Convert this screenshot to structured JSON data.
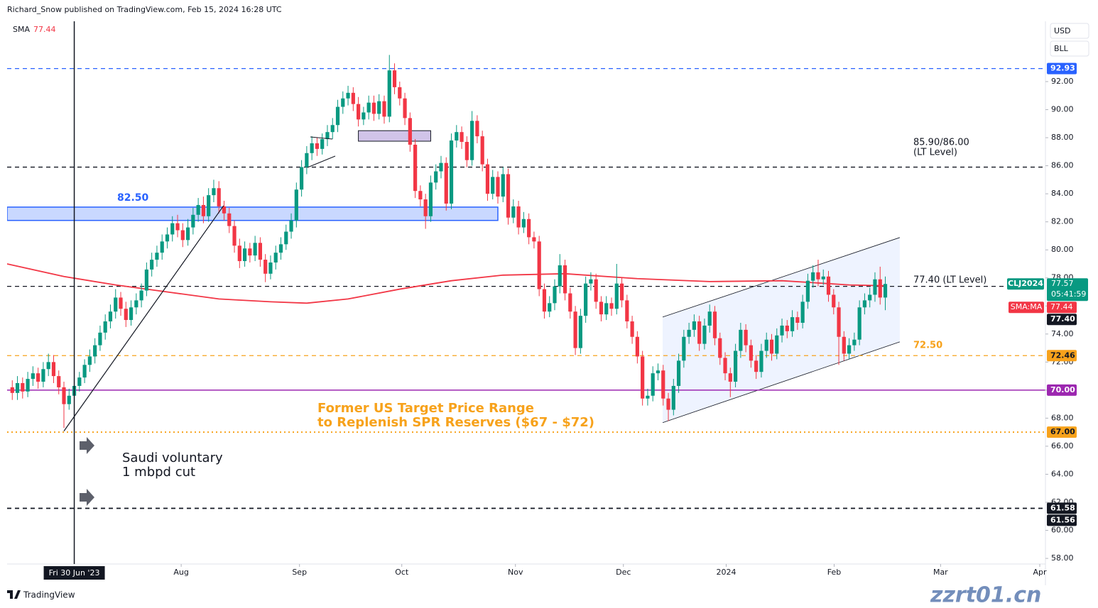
{
  "chart_data": {
    "type": "candlestick",
    "title": "Richard_Snow published on TradingView.com, Feb 15, 2024 16:28 UTC",
    "indicator": "SMA",
    "currency": "USD",
    "unit": "BLL",
    "symbol": "CLJ2024",
    "countdown": "05:41:59",
    "up_color": "#089981",
    "down_color": "#f23645",
    "xlim": [
      -1,
      200
    ],
    "xticks": [
      {
        "value": 32.7,
        "label": "Aug"
      },
      {
        "value": 55.6,
        "label": "Sep"
      },
      {
        "value": 75.4,
        "label": "Oct"
      },
      {
        "value": 97.4,
        "label": "Nov"
      },
      {
        "value": 118.3,
        "label": "Dec"
      },
      {
        "value": 138.2,
        "label": "2024"
      },
      {
        "value": 159.1,
        "label": "Feb"
      },
      {
        "value": 179.7,
        "label": "Mar"
      },
      {
        "value": 198.9,
        "label": "Apr"
      }
    ],
    "crosshair": {
      "value": 12,
      "label": "Fri 30 Jun '23"
    },
    "ylim": [
      57.6,
      96.3
    ],
    "yticks": [
      {
        "value": 58,
        "label": "58.00"
      },
      {
        "value": 60,
        "label": "60.00"
      },
      {
        "value": 62,
        "label": "62.00"
      },
      {
        "value": 64,
        "label": "64.00"
      },
      {
        "value": 66,
        "label": "66.00"
      },
      {
        "value": 68,
        "label": "68.00"
      },
      {
        "value": 70,
        "label": "70.00"
      },
      {
        "value": 72,
        "label": "72.00"
      },
      {
        "value": 74,
        "label": "74.00"
      },
      {
        "value": 76,
        "label": "76.00"
      },
      {
        "value": 78,
        "label": "78.00"
      },
      {
        "value": 80,
        "label": "80.00"
      },
      {
        "value": 82,
        "label": "82.00"
      },
      {
        "value": 84,
        "label": "84.00"
      },
      {
        "value": 86,
        "label": "86.00"
      },
      {
        "value": 88,
        "label": "88.00"
      },
      {
        "value": 90,
        "label": "90.00"
      },
      {
        "value": 92,
        "label": "92.00"
      }
    ],
    "open": [
      70.2,
      69.8,
      70.5,
      69.9,
      70.8,
      71.2,
      70.6,
      71.5,
      72.0,
      71.0,
      70.2,
      69.0,
      69.6,
      70.3,
      70.9,
      71.8,
      72.4,
      73.2,
      74.1,
      74.9,
      75.6,
      76.6,
      75.8,
      75.0,
      75.9,
      76.4,
      77.1,
      78.6,
      79.3,
      79.8,
      80.6,
      81.1,
      81.9,
      81.4,
      80.7,
      81.6,
      82.5,
      83.2,
      82.4,
      83.9,
      84.4,
      83.1,
      82.6,
      81.7,
      80.3,
      79.2,
      80.1,
      79.6,
      80.5,
      79.3,
      78.3,
      79.1,
      79.8,
      80.4,
      81.3,
      82.1,
      84.3,
      85.9,
      86.9,
      87.6,
      87.2,
      87.9,
      88.4,
      88.9,
      90.2,
      90.8,
      91.2,
      90.4,
      89.3,
      89.8,
      90.5,
      89.7,
      90.6,
      89.5,
      92.8,
      91.6,
      90.8,
      89.4,
      87.5,
      84.2,
      83.6,
      82.4,
      84.8,
      85.6,
      86.2,
      83.3,
      87.8,
      88.4,
      87.7,
      86.4,
      89.2,
      88.1,
      86.1,
      84.0,
      85.2,
      83.8,
      85.4,
      82.3,
      83.1,
      81.6,
      82.2,
      80.9,
      80.6,
      77.2,
      75.6,
      76.2,
      77.4,
      78.9,
      76.9,
      75.6,
      73.0,
      75.3,
      77.6,
      77.9,
      76.3,
      75.4,
      76.2,
      75.8,
      77.6,
      76.4,
      74.9,
      73.8,
      72.4,
      69.4,
      69.6,
      71.2,
      71.4,
      69.4,
      68.6,
      70.3,
      72.1,
      73.8,
      74.3,
      74.9,
      73.3,
      74.6,
      75.6,
      73.7,
      72.3,
      71.2,
      70.6,
      72.8,
      74.3,
      73.2,
      72.1,
      71.3,
      72.8,
      73.6,
      72.6,
      73.9,
      74.6,
      74.2,
      75.2,
      74.8,
      76.3,
      77.8,
      78.4,
      77.9,
      78.1,
      76.8,
      75.9,
      73.8,
      72.6,
      73.2,
      73.6,
      75.9,
      76.4,
      76.8,
      77.9,
      76.6
    ],
    "high": [
      70.7,
      71.0,
      70.9,
      71.3,
      71.7,
      71.6,
      72.0,
      72.6,
      72.5,
      71.4,
      70.6,
      70.1,
      70.7,
      71.3,
      72.2,
      72.9,
      73.7,
      74.6,
      75.4,
      76.1,
      77.2,
      77.0,
      76.3,
      76.4,
      76.9,
      77.6,
      79.1,
      79.8,
      80.3,
      81.1,
      81.6,
      82.4,
      82.5,
      81.9,
      82.2,
      83.0,
      83.7,
      83.8,
      84.4,
      85.0,
      84.9,
      83.5,
      83.0,
      82.1,
      80.8,
      80.6,
      80.5,
      81.0,
      80.9,
      79.7,
      79.6,
      80.3,
      80.9,
      81.8,
      82.6,
      84.8,
      86.4,
      87.4,
      88.1,
      88.0,
      88.3,
      88.9,
      89.4,
      90.7,
      91.3,
      91.7,
      91.6,
      90.9,
      90.2,
      91.0,
      91.0,
      91.1,
      91.0,
      93.9,
      93.3,
      92.0,
      91.2,
      89.8,
      87.9,
      84.6,
      84.0,
      85.3,
      86.1,
      86.7,
      86.6,
      88.3,
      88.9,
      88.8,
      88.1,
      89.9,
      89.6,
      88.5,
      86.5,
      85.7,
      85.6,
      85.9,
      85.8,
      83.6,
      83.5,
      82.7,
      82.6,
      81.3,
      81.0,
      77.6,
      76.7,
      77.9,
      79.7,
      79.3,
      77.3,
      76.0,
      75.8,
      78.1,
      78.4,
      78.3,
      76.7,
      76.7,
      76.6,
      79.0,
      78.0,
      76.8,
      75.3,
      74.2,
      72.8,
      70.1,
      71.7,
      71.9,
      71.8,
      69.8,
      70.8,
      72.6,
      74.3,
      74.8,
      75.4,
      75.3,
      75.1,
      76.1,
      76.0,
      74.1,
      72.7,
      71.6,
      73.3,
      74.8,
      74.7,
      73.6,
      72.5,
      73.3,
      74.1,
      74.0,
      74.4,
      75.1,
      75.0,
      75.7,
      75.6,
      76.8,
      78.3,
      78.9,
      79.3,
      78.6,
      78.5,
      77.2,
      76.3,
      74.2,
      73.7,
      74.1,
      76.4,
      76.9,
      77.3,
      78.4,
      78.8,
      78.1
    ],
    "low": [
      69.3,
      69.3,
      69.4,
      69.5,
      70.3,
      70.1,
      70.2,
      71.0,
      70.5,
      69.7,
      67.3,
      68.6,
      69.2,
      69.9,
      70.5,
      71.3,
      71.9,
      72.8,
      73.6,
      74.4,
      75.1,
      75.3,
      74.5,
      74.6,
      75.4,
      75.9,
      76.7,
      78.1,
      78.8,
      79.3,
      80.1,
      80.6,
      80.9,
      80.2,
      80.3,
      81.1,
      82.0,
      81.9,
      82.0,
      83.4,
      82.6,
      82.1,
      81.2,
      79.8,
      78.7,
      78.8,
      79.1,
      79.2,
      78.8,
      77.7,
      77.9,
      78.6,
      79.3,
      80.0,
      80.8,
      81.6,
      83.8,
      85.4,
      86.4,
      86.7,
      86.8,
      87.4,
      87.9,
      88.4,
      89.7,
      90.3,
      89.9,
      88.8,
      88.9,
      89.3,
      89.2,
      89.3,
      89.0,
      89.1,
      91.1,
      90.3,
      88.9,
      87.0,
      83.7,
      83.1,
      81.5,
      82.0,
      84.3,
      85.1,
      82.8,
      82.9,
      87.3,
      87.2,
      85.9,
      86.0,
      87.6,
      85.6,
      83.5,
      83.6,
      83.3,
      83.4,
      81.8,
      81.9,
      81.1,
      81.2,
      80.4,
      80.1,
      76.7,
      75.1,
      75.2,
      75.7,
      76.9,
      76.4,
      75.1,
      72.5,
      72.6,
      74.8,
      77.1,
      75.8,
      74.9,
      75.0,
      75.3,
      75.4,
      75.9,
      74.4,
      73.3,
      71.9,
      68.9,
      68.9,
      69.2,
      70.7,
      68.9,
      67.8,
      68.2,
      69.8,
      71.6,
      73.3,
      73.8,
      72.8,
      72.9,
      74.1,
      73.2,
      71.8,
      70.7,
      69.5,
      70.2,
      72.3,
      72.7,
      71.6,
      70.8,
      70.9,
      72.3,
      72.1,
      72.2,
      73.4,
      73.7,
      73.8,
      74.3,
      74.4,
      75.8,
      77.3,
      77.4,
      77.5,
      76.3,
      75.4,
      71.8,
      72.1,
      72.2,
      72.8,
      73.2,
      75.4,
      75.9,
      76.3,
      76.1,
      75.7
    ],
    "close": [
      69.8,
      70.5,
      69.9,
      70.8,
      71.2,
      70.6,
      71.5,
      72.0,
      71.0,
      70.2,
      69.0,
      69.6,
      70.3,
      70.9,
      71.8,
      72.4,
      73.2,
      74.1,
      74.9,
      75.6,
      76.6,
      75.8,
      75.0,
      75.9,
      76.4,
      77.1,
      78.6,
      79.3,
      79.8,
      80.6,
      81.1,
      81.9,
      81.4,
      80.7,
      81.6,
      82.5,
      83.2,
      82.4,
      83.9,
      84.4,
      83.1,
      82.6,
      81.7,
      80.3,
      79.2,
      80.1,
      79.6,
      80.5,
      79.3,
      78.3,
      79.1,
      79.8,
      80.4,
      81.3,
      82.1,
      84.3,
      85.9,
      86.9,
      87.6,
      87.2,
      87.9,
      88.4,
      88.9,
      90.2,
      90.8,
      91.2,
      90.4,
      89.3,
      89.8,
      90.5,
      89.7,
      90.6,
      89.5,
      92.8,
      91.6,
      90.8,
      89.4,
      87.5,
      84.2,
      83.6,
      82.4,
      84.8,
      85.6,
      86.2,
      83.3,
      87.8,
      88.4,
      87.7,
      86.4,
      89.2,
      88.1,
      86.1,
      84.0,
      85.2,
      83.8,
      85.4,
      82.3,
      83.1,
      81.6,
      82.2,
      80.9,
      80.6,
      77.2,
      75.6,
      76.2,
      77.4,
      78.9,
      76.9,
      75.6,
      73.0,
      75.3,
      77.6,
      77.9,
      76.3,
      75.4,
      76.2,
      75.8,
      77.6,
      76.4,
      74.9,
      73.8,
      72.4,
      69.4,
      69.6,
      71.2,
      71.4,
      69.4,
      68.6,
      70.3,
      72.1,
      73.8,
      74.3,
      74.9,
      73.3,
      74.6,
      75.6,
      73.7,
      72.3,
      71.2,
      70.6,
      72.8,
      74.3,
      73.2,
      72.1,
      71.3,
      72.8,
      73.6,
      72.6,
      73.9,
      74.6,
      74.2,
      75.2,
      74.8,
      76.3,
      77.8,
      78.4,
      77.9,
      78.1,
      76.8,
      75.9,
      73.8,
      72.6,
      73.2,
      73.6,
      75.9,
      76.4,
      76.8,
      77.9,
      76.6,
      77.57
    ],
    "sma": {
      "name": "SMA:MA",
      "color": "#f23645",
      "x": [
        -1,
        10,
        20,
        30,
        40,
        50,
        57,
        65,
        75,
        85,
        95,
        107,
        121,
        135,
        149,
        162,
        169
      ],
      "values": [
        79.0,
        78.1,
        77.5,
        77.0,
        76.5,
        76.3,
        76.2,
        76.5,
        77.2,
        77.8,
        78.2,
        78.3,
        77.95,
        77.74,
        77.8,
        77.5,
        77.44
      ]
    },
    "levels": [
      {
        "value": 92.93,
        "color": "#2962ff",
        "style": "dashed",
        "tag": true
      },
      {
        "value": 85.9,
        "color": "#131722",
        "style": "dashed",
        "tag": false
      },
      {
        "value": 77.4,
        "label": "77.40",
        "color": "#131722",
        "style": "dashed",
        "tag": true
      },
      {
        "value": 72.46,
        "color": "#f7a21b",
        "style": "dashed",
        "tag": true
      },
      {
        "value": 70,
        "label": "70.00",
        "color": "#9c27b0",
        "style": "solid",
        "tag": true
      },
      {
        "value": 67,
        "label": "67.00",
        "color": "#f7a21b",
        "style": "dotted",
        "tag": true
      },
      {
        "value": 61.58,
        "color": "#131722",
        "style": "dashed",
        "tag": true
      },
      {
        "value": 61.56,
        "color": "#131722",
        "style": "dashed",
        "tag": true
      }
    ],
    "zone": {
      "x": [
        -1,
        94
      ],
      "y": [
        82.1,
        83.05
      ],
      "color": "#2962ff",
      "label": "82.50"
    },
    "box": {
      "x": [
        67,
        81
      ],
      "y": [
        87.75,
        88.5
      ],
      "color": "#d1c4e9"
    },
    "channel": {
      "x": [
        125.9,
        171.8
      ],
      "lower": [
        67.68,
        73.44
      ],
      "upper": [
        75.21,
        80.88
      ],
      "color": "#2962ff"
    },
    "trendline": {
      "x": [
        10,
        40.9
      ],
      "y": [
        67.08,
        83.15
      ]
    },
    "annotations": {
      "lt_level_high": [
        "85.90/86.00",
        "(LT Level)"
      ],
      "lt_level_mid": "77.40 (LT Level)",
      "level_72": "72.50",
      "spr": [
        "Former US Target Price Range",
        "to Replenish SPR Reserves ($67 - $72)"
      ],
      "saudi": [
        "Saudi voluntary",
        "1 mbpd cut"
      ]
    },
    "footer": "TradingView",
    "watermark": "zzrt01.cn"
  }
}
